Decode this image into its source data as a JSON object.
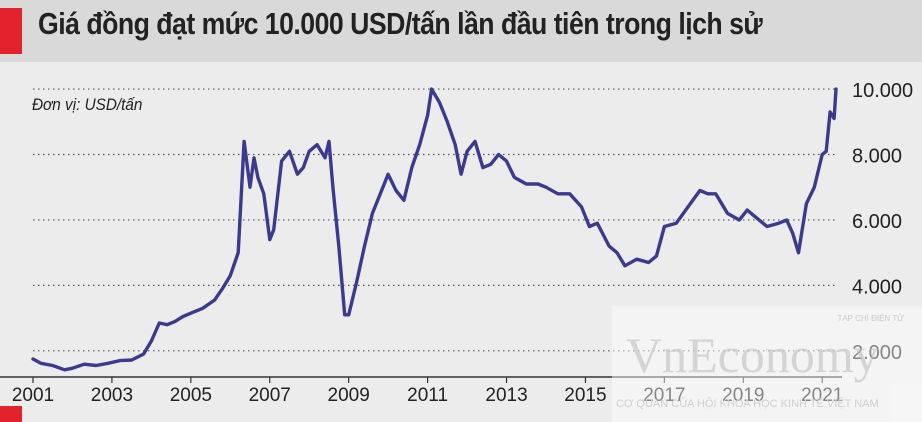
{
  "header": {
    "title": "Giá đồng đạt mức 10.000 USD/tấn lần đầu tiên trong lịch sử"
  },
  "watermark": {
    "top": "TẠP CHÍ ĐIỆN TỬ",
    "main": "VnEconomy",
    "bottom": "CƠ QUAN CỦA HỘI KHOA HỌC KINH TẾ VIỆT NAM"
  },
  "colors": {
    "line": "#3a3a8f",
    "accent": "#e3222b",
    "background": "#ececec",
    "header_bg": "#d9d9d9"
  },
  "chart_data": {
    "type": "line",
    "title": "Giá đồng đạt mức 10.000 USD/tấn lần đầu tiên trong lịch sử",
    "unit_label": "Đơn vị: USD/tấn",
    "xlim": [
      2001,
      2021.4
    ],
    "ylim": [
      1200,
      10400
    ],
    "x_ticks": [
      2001,
      2003,
      2005,
      2007,
      2009,
      2011,
      2013,
      2015,
      2017,
      2019,
      2021
    ],
    "x_tick_labels": [
      "2001",
      "2003",
      "2005",
      "2007",
      "2009",
      "2011",
      "2013",
      "2015",
      "2017",
      "2019",
      "2021"
    ],
    "y_ticks": [
      2000,
      4000,
      6000,
      8000,
      10000
    ],
    "y_tick_labels": [
      "2.000",
      "4.000",
      "6.000",
      "8.000",
      "10.000"
    ],
    "grid": "horizontal-dotted",
    "series": [
      {
        "x": [
          2001.0,
          2001.2,
          2001.5,
          2001.8,
          2002.0,
          2002.3,
          2002.6,
          2002.9,
          2003.2,
          2003.5,
          2003.8,
          2004.0,
          2004.2,
          2004.4,
          2004.6,
          2004.8,
          2005.0,
          2005.3,
          2005.6,
          2005.8,
          2006.0,
          2006.2,
          2006.35,
          2006.5,
          2006.6,
          2006.7,
          2006.85,
          2007.0,
          2007.1,
          2007.3,
          2007.5,
          2007.7,
          2007.85,
          2008.0,
          2008.2,
          2008.4,
          2008.5,
          2008.6,
          2008.75,
          2008.9,
          2009.0,
          2009.2,
          2009.4,
          2009.6,
          2009.8,
          2010.0,
          2010.2,
          2010.4,
          2010.6,
          2010.8,
          2011.0,
          2011.1,
          2011.3,
          2011.5,
          2011.7,
          2011.85,
          2012.0,
          2012.2,
          2012.4,
          2012.6,
          2012.8,
          2013.0,
          2013.2,
          2013.5,
          2013.8,
          2014.0,
          2014.3,
          2014.6,
          2014.9,
          2015.1,
          2015.3,
          2015.6,
          2015.8,
          2016.0,
          2016.3,
          2016.6,
          2016.8,
          2017.0,
          2017.3,
          2017.6,
          2017.9,
          2018.1,
          2018.3,
          2018.6,
          2018.9,
          2019.1,
          2019.3,
          2019.6,
          2019.9,
          2020.1,
          2020.25,
          2020.4,
          2020.6,
          2020.8,
          2021.0,
          2021.1,
          2021.2,
          2021.3,
          2021.35
        ],
        "values": [
          1750,
          1620,
          1550,
          1420,
          1470,
          1590,
          1550,
          1620,
          1700,
          1720,
          1900,
          2300,
          2850,
          2800,
          2900,
          3050,
          3150,
          3300,
          3550,
          3900,
          4300,
          5000,
          8400,
          7000,
          7900,
          7300,
          6800,
          5400,
          5700,
          7800,
          8100,
          7400,
          7600,
          8100,
          8300,
          7900,
          8400,
          7000,
          5200,
          3100,
          3100,
          4100,
          5200,
          6200,
          6800,
          7400,
          6900,
          6600,
          7600,
          8300,
          9200,
          10000,
          9600,
          9000,
          8300,
          7400,
          8100,
          8400,
          7600,
          7700,
          8000,
          7800,
          7300,
          7100,
          7100,
          7000,
          6800,
          6800,
          6400,
          5800,
          5900,
          5200,
          5000,
          4600,
          4800,
          4700,
          4900,
          5800,
          5900,
          6400,
          6900,
          6800,
          6800,
          6200,
          6000,
          6300,
          6100,
          5800,
          5900,
          6000,
          5600,
          5000,
          6500,
          7000,
          8000,
          8100,
          9300,
          9100,
          10000
        ]
      }
    ]
  }
}
